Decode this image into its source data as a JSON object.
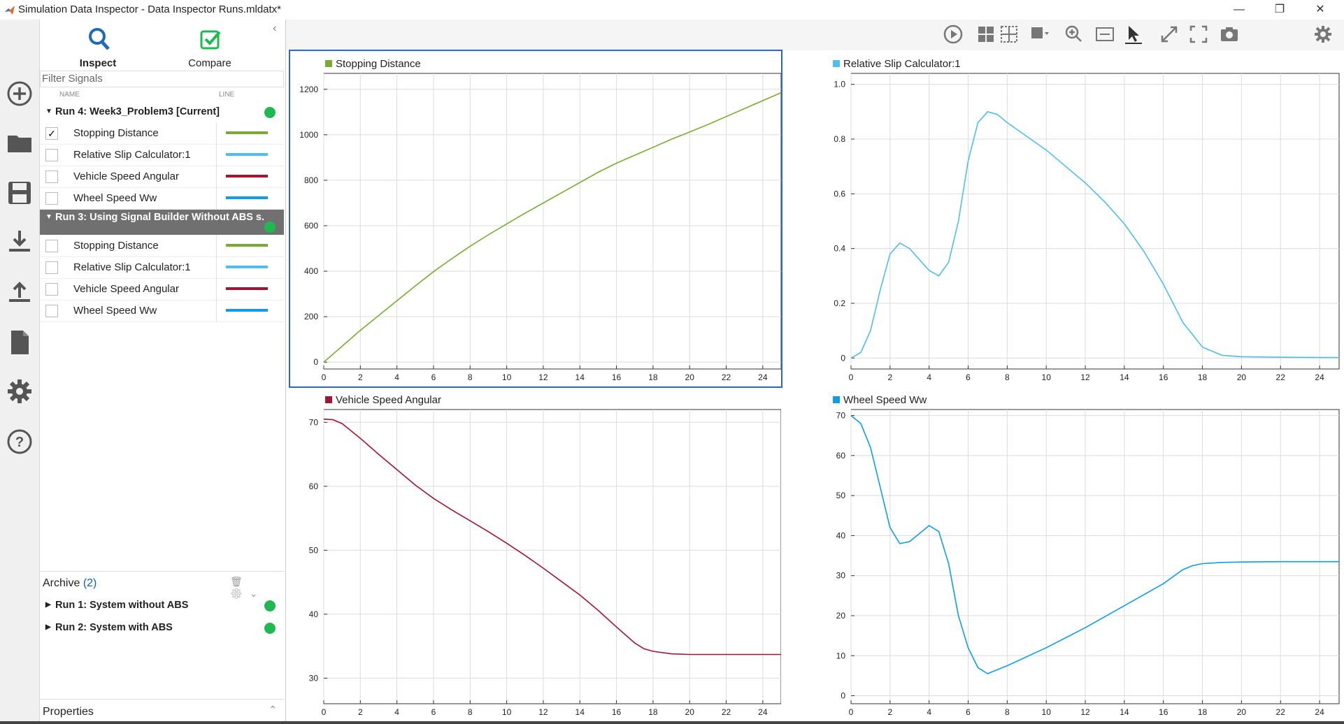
{
  "window": {
    "title": "Simulation Data Inspector - Data Inspector Runs.mldatx*"
  },
  "tabs": [
    {
      "label": "Inspect"
    },
    {
      "label": "Compare"
    }
  ],
  "filter": {
    "placeholder": "Filter Signals"
  },
  "columns": {
    "name": "NAME",
    "line": "LINE"
  },
  "runs": [
    {
      "name": "Run 4: Week3_Problem3 [Current]",
      "selected": false,
      "signals": [
        {
          "name": "Stopping Distance",
          "checked": true,
          "color": "#77ac30"
        },
        {
          "name": "Relative Slip Calculator:1",
          "checked": false,
          "color": "#4dbeee"
        },
        {
          "name": "Vehicle Speed Angular",
          "checked": false,
          "color": "#a2142f"
        },
        {
          "name": "Wheel Speed Ww",
          "checked": false,
          "color": "#0d9ded"
        }
      ]
    },
    {
      "name": "Run 3: Using Signal Builder Without ABS s...",
      "selected": true,
      "signals": [
        {
          "name": "Stopping Distance",
          "checked": false,
          "color": "#77ac30"
        },
        {
          "name": "Relative Slip Calculator:1",
          "checked": false,
          "color": "#4dbeee"
        },
        {
          "name": "Vehicle Speed Angular",
          "checked": false,
          "color": "#a2142f"
        },
        {
          "name": "Wheel Speed Ww",
          "checked": false,
          "color": "#0d9ded"
        }
      ]
    }
  ],
  "archive": {
    "label": "Archive",
    "count": "(2)",
    "runs": [
      {
        "name": "Run 1: System without ABS"
      },
      {
        "name": "Run 2: System with ABS"
      }
    ]
  },
  "properties": {
    "label": "Properties"
  },
  "chart_data": [
    {
      "type": "line",
      "title": "Stopping Distance",
      "color": "#77ac30",
      "xlim": [
        0,
        25
      ],
      "ylim": [
        -30,
        1270
      ],
      "xticks": [
        0,
        2,
        4,
        6,
        8,
        10,
        12,
        14,
        16,
        18,
        20,
        22,
        24
      ],
      "yticks": [
        0,
        200,
        400,
        600,
        800,
        1000,
        1200
      ],
      "x": [
        0,
        1,
        2,
        3,
        4,
        5,
        6,
        7,
        8,
        9,
        10,
        11,
        12,
        13,
        14,
        15,
        16,
        17,
        18,
        19,
        20,
        21,
        22,
        23,
        24,
        25
      ],
      "y": [
        0,
        70,
        140,
        205,
        270,
        335,
        398,
        455,
        510,
        560,
        608,
        655,
        700,
        745,
        790,
        835,
        875,
        910,
        945,
        980,
        1012,
        1045,
        1080,
        1115,
        1150,
        1185
      ]
    },
    {
      "type": "line",
      "title": "Relative Slip Calculator:1",
      "color": "#4dbeee",
      "xlim": [
        0,
        25
      ],
      "ylim": [
        -0.04,
        1.04
      ],
      "xticks": [
        0,
        2,
        4,
        6,
        8,
        10,
        12,
        14,
        16,
        18,
        20,
        22,
        24
      ],
      "yticks": [
        0,
        0.2,
        0.4,
        0.6,
        0.8,
        1.0
      ],
      "x": [
        0,
        0.5,
        1,
        1.5,
        2,
        2.5,
        3,
        3.5,
        4,
        4.5,
        5,
        5.5,
        6,
        6.5,
        7,
        7.5,
        8,
        9,
        10,
        11,
        12,
        13,
        14,
        15,
        16,
        17,
        18,
        19,
        20,
        22,
        25
      ],
      "y": [
        0,
        0.02,
        0.1,
        0.25,
        0.38,
        0.42,
        0.4,
        0.36,
        0.32,
        0.3,
        0.35,
        0.5,
        0.72,
        0.86,
        0.9,
        0.89,
        0.86,
        0.81,
        0.76,
        0.7,
        0.64,
        0.57,
        0.49,
        0.39,
        0.27,
        0.13,
        0.04,
        0.01,
        0.005,
        0.003,
        0.002
      ]
    },
    {
      "type": "line",
      "title": "Vehicle Speed Angular",
      "color": "#a2142f",
      "xlim": [
        0,
        25
      ],
      "ylim": [
        26,
        72
      ],
      "xticks": [
        0,
        2,
        4,
        6,
        8,
        10,
        12,
        14,
        16,
        18,
        20,
        22,
        24
      ],
      "yticks": [
        30,
        40,
        50,
        60,
        70
      ],
      "x": [
        0,
        0.5,
        1,
        2,
        3,
        4,
        5,
        6,
        7,
        8,
        9,
        10,
        11,
        12,
        13,
        14,
        15,
        16,
        17,
        17.5,
        18,
        19,
        20,
        22,
        25
      ],
      "y": [
        70.5,
        70.4,
        69.8,
        67.5,
        65,
        62.6,
        60.2,
        58.1,
        56.3,
        54.6,
        52.9,
        51.1,
        49.2,
        47.2,
        45.1,
        43,
        40.6,
        38,
        35.5,
        34.6,
        34.2,
        33.8,
        33.7,
        33.7,
        33.7
      ]
    },
    {
      "type": "line",
      "title": "Wheel Speed Ww",
      "color": "#0d9ded",
      "xlim": [
        0,
        25
      ],
      "ylim": [
        -2,
        71.5
      ],
      "xticks": [
        0,
        2,
        4,
        6,
        8,
        10,
        12,
        14,
        16,
        18,
        20,
        22,
        24
      ],
      "yticks": [
        0,
        10,
        20,
        30,
        40,
        50,
        60,
        70
      ],
      "x": [
        0,
        0.5,
        1,
        1.5,
        2,
        2.5,
        3,
        3.5,
        4,
        4.5,
        5,
        5.5,
        6,
        6.5,
        7,
        7.5,
        8,
        10,
        12,
        14,
        16,
        17,
        17.5,
        18,
        19,
        20,
        22,
        25
      ],
      "y": [
        70,
        68,
        62,
        52,
        42,
        38,
        38.5,
        40.5,
        42.5,
        41,
        33,
        20,
        12,
        7,
        5.5,
        6.5,
        7.5,
        12,
        17,
        22.5,
        28,
        31.5,
        32.5,
        33,
        33.3,
        33.4,
        33.5,
        33.5
      ]
    }
  ]
}
